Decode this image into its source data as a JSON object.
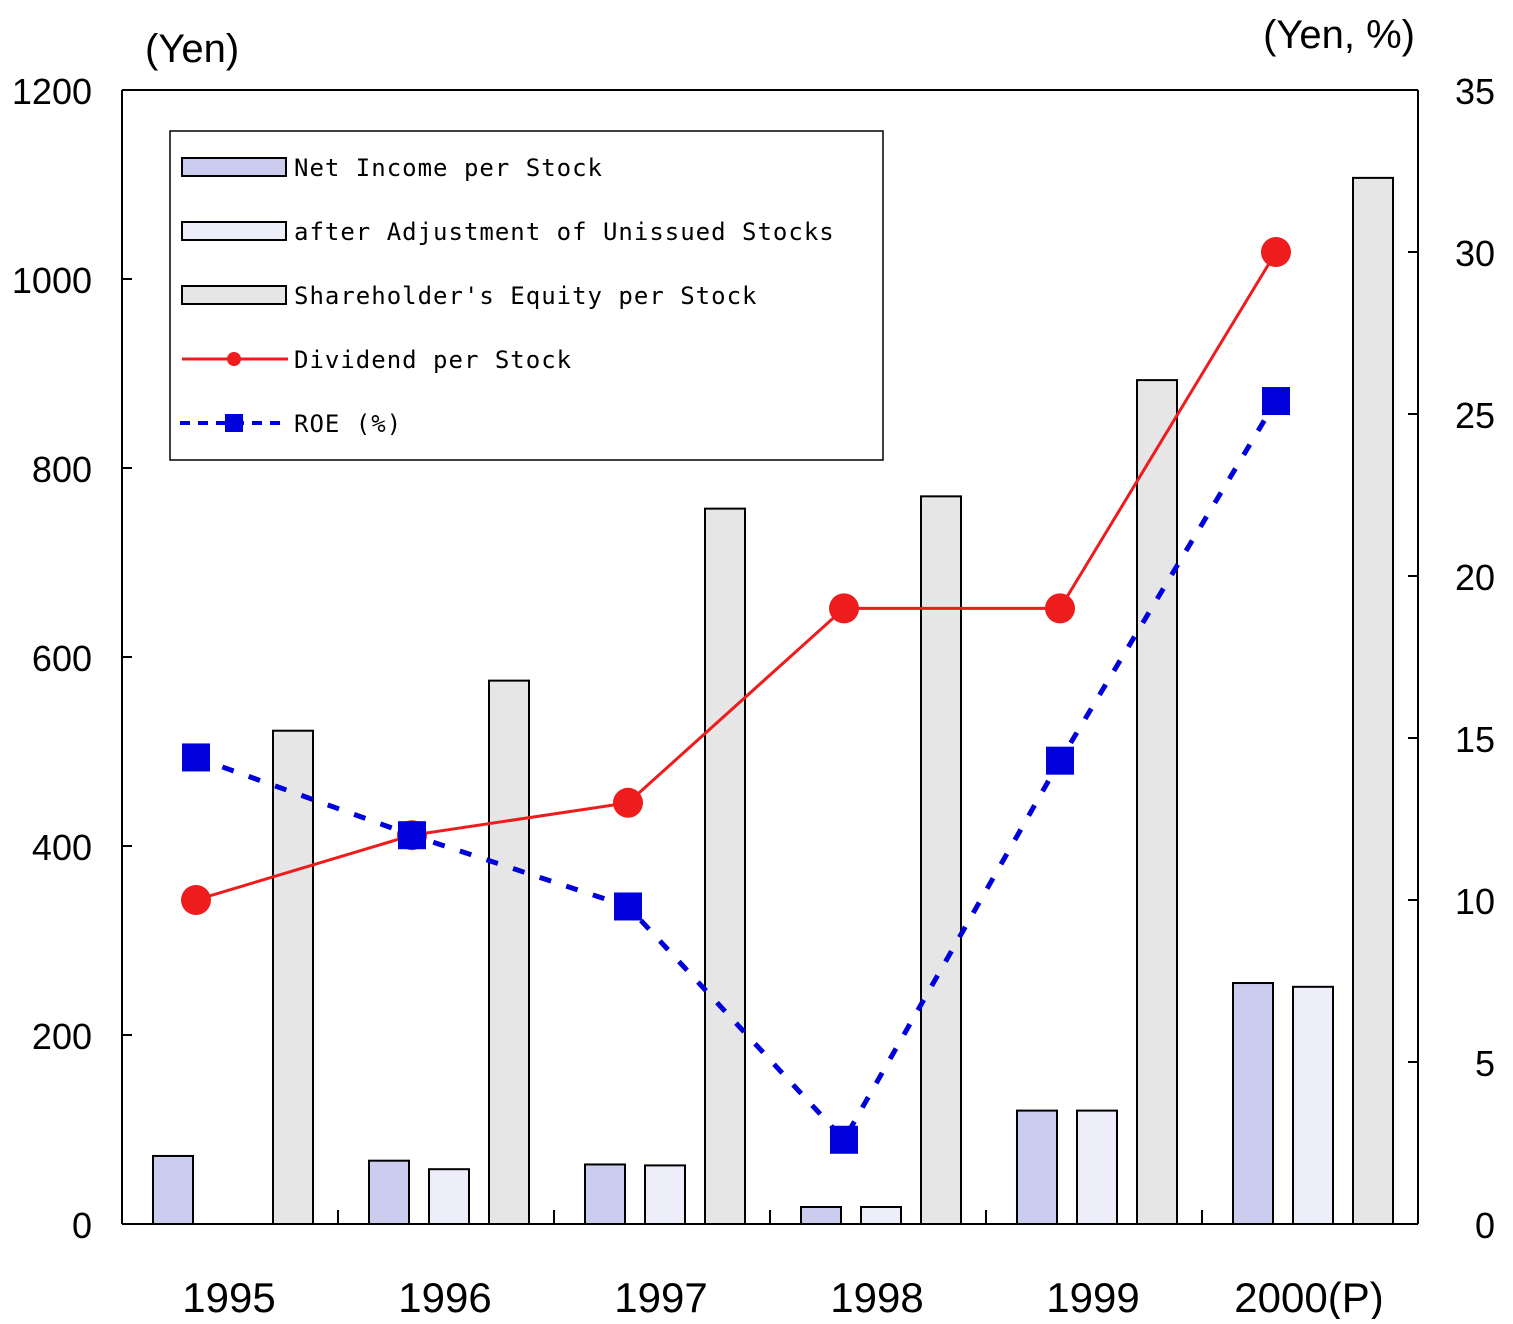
{
  "chart_data": {
    "type": "bar",
    "categories": [
      "1995",
      "1996",
      "1997",
      "1998",
      "1999",
      "2000(P)"
    ],
    "y_left_label": "(Yen)",
    "y_right_label": "(Yen, %)",
    "y_left_range": [
      0,
      1200
    ],
    "y_left_ticks": [
      "0",
      "200",
      "400",
      "600",
      "800",
      "1000",
      "1200"
    ],
    "y_right_range": [
      0,
      35
    ],
    "y_right_ticks": [
      "0",
      "5",
      "10",
      "15",
      "20",
      "25",
      "30",
      "35"
    ],
    "grid": false,
    "legend_position": "top-left",
    "series": [
      {
        "name": "Net Income per Stock",
        "type": "bar",
        "axis": "left",
        "color": "#ccccee",
        "values": [
          72,
          67,
          63,
          18,
          120,
          255
        ]
      },
      {
        "name": " after Adjustment of Unissued Stocks",
        "type": "bar",
        "axis": "left",
        "color": "#eeeefa",
        "values": [
          null,
          58,
          62,
          18,
          120,
          251
        ]
      },
      {
        "name": "Shareholder's Equity per Stock",
        "type": "bar",
        "axis": "left",
        "color": "#e6e6e6",
        "values": [
          522,
          575,
          757,
          770,
          893,
          1107
        ]
      },
      {
        "name": "Dividend per Stock",
        "type": "line",
        "axis": "right",
        "color": "#ee1c1c",
        "values": [
          10,
          12,
          13,
          19,
          19,
          30
        ]
      },
      {
        "name": "ROE (%)",
        "type": "line",
        "axis": "right",
        "color": "#0000dd",
        "values": [
          14.4,
          12,
          9.8,
          2.6,
          14.3,
          25.4
        ]
      }
    ]
  }
}
